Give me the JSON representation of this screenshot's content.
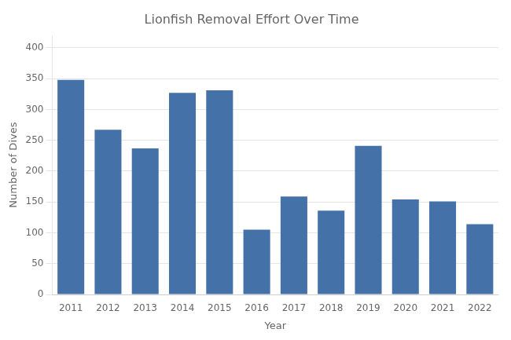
{
  "chart_data": {
    "type": "bar",
    "title": "Lionfish Removal Effort Over Time",
    "xlabel": "Year",
    "ylabel": "Number of Dives",
    "categories": [
      "2011",
      "2012",
      "2013",
      "2014",
      "2015",
      "2016",
      "2017",
      "2018",
      "2019",
      "2020",
      "2021",
      "2022"
    ],
    "values": [
      348,
      267,
      237,
      327,
      331,
      105,
      159,
      136,
      241,
      154,
      151,
      114
    ],
    "color": "#4472a8",
    "ylim": [
      0,
      420
    ],
    "yticks": [
      0,
      50,
      100,
      150,
      200,
      250,
      300,
      350,
      400
    ],
    "grid": true
  }
}
